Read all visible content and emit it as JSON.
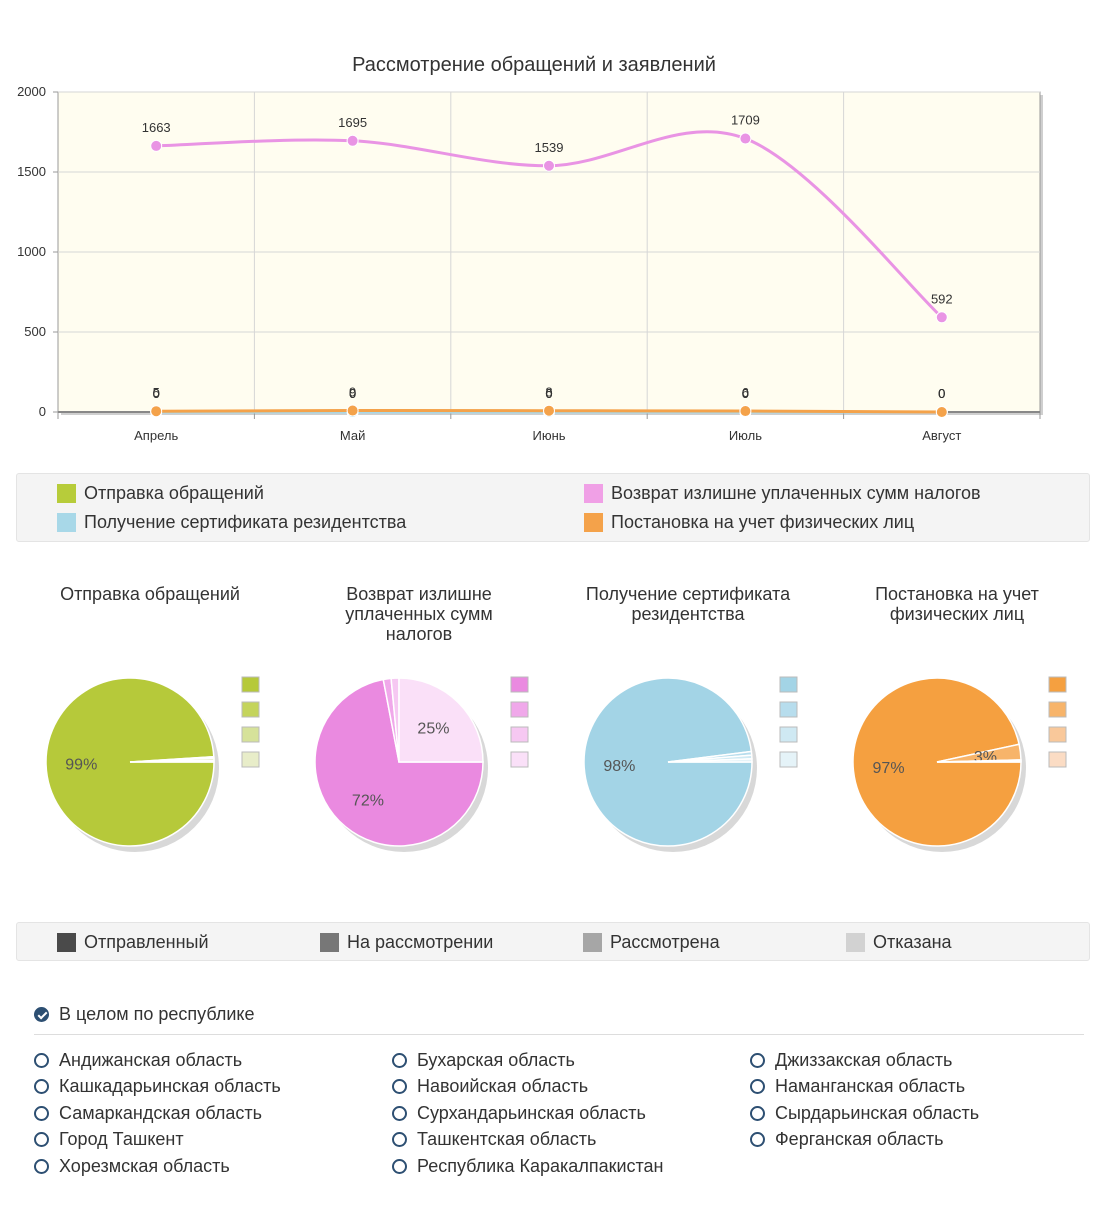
{
  "chart_data": [
    {
      "type": "line",
      "title": "Рассмотрение обращений и заявлений",
      "categories": [
        "Апрель",
        "Май",
        "Июнь",
        "Июль",
        "Август"
      ],
      "ylim": [
        0,
        2000
      ],
      "yticks": [
        0,
        500,
        1000,
        1500,
        2000
      ],
      "grid": true,
      "series": [
        {
          "name": "Возврат излишне уплаченных сумм налогов",
          "color": "#e994e4",
          "values": [
            1663,
            1695,
            1539,
            1709,
            592
          ],
          "labels": [
            "1663",
            "1695",
            "1539",
            "1709",
            "592"
          ]
        },
        {
          "name": "Отправка обращений",
          "color": "#b7cc3a",
          "values": [
            0,
            0,
            0,
            0,
            0
          ],
          "labels": [
            "0",
            "0",
            "0",
            "0",
            "0"
          ]
        },
        {
          "name": "Получение сертификата резидентства",
          "color": "#a8d8e8",
          "values": [
            0,
            0,
            0,
            0,
            0
          ],
          "labels": [
            "0",
            "0",
            "0",
            "0",
            "0"
          ]
        },
        {
          "name": "Постановка на учет физических лиц",
          "color": "#f4a24a",
          "values": [
            5,
            9,
            8,
            6,
            0
          ],
          "labels": [
            "5",
            "9",
            "8",
            "6",
            "0"
          ]
        }
      ]
    },
    {
      "type": "pie",
      "title": "Отправка обращений",
      "colors": [
        "#b6c93a",
        "#c4d45c",
        "#d6e29a",
        "#e8edc9"
      ],
      "values": [
        99,
        0.3,
        0.4,
        0.3
      ],
      "labels": [
        "99%",
        "",
        "",
        ""
      ]
    },
    {
      "type": "pie",
      "title": "Возврат излишне уплаченных сумм налогов",
      "colors": [
        "#ea8ae0",
        "#f0a8ea",
        "#f6c8f2",
        "#fae0f8"
      ],
      "values": [
        72,
        1.5,
        1.5,
        25
      ],
      "labels": [
        "72%",
        "",
        "",
        "25%"
      ]
    },
    {
      "type": "pie",
      "title": "Получение сертификата резидентства",
      "colors": [
        "#a3d4e6",
        "#b7dded",
        "#cfe9f3",
        "#e5f3f8"
      ],
      "values": [
        98,
        0.7,
        0.7,
        0.6
      ],
      "labels": [
        "98%",
        "",
        "",
        ""
      ]
    },
    {
      "type": "pie",
      "title": "Постановка на учет физических лиц",
      "colors": [
        "#f5a040",
        "#f7b46a",
        "#f9c89a",
        "#fbdcc4"
      ],
      "values": [
        97,
        3,
        0.2,
        0.2
      ],
      "labels": [
        "97%",
        "3%",
        "",
        ""
      ]
    }
  ],
  "legend": {
    "items": [
      {
        "label": "Отправка обращений",
        "color": "#b7cc3a"
      },
      {
        "label": "Возврат излишне уплаченных сумм налогов",
        "color": "#f0a0e6"
      },
      {
        "label": "Получение сертификата резидентства",
        "color": "#a8d8e8"
      },
      {
        "label": "Постановка на учет физических лиц",
        "color": "#f4a24a"
      }
    ]
  },
  "pie_titles": {
    "p1": [
      "Отправка обращений"
    ],
    "p2": [
      "Возврат излишне",
      "уплаченных сумм",
      "налогов"
    ],
    "p3": [
      "Получение сертификата",
      "резидентства"
    ],
    "p4": [
      "Постановка на учет",
      "физических лиц"
    ]
  },
  "status_legend": {
    "items": [
      {
        "label": "Отправленный",
        "color": "#4a4a4a"
      },
      {
        "label": "На рассмотрении",
        "color": "#777777"
      },
      {
        "label": "Рассмотрена",
        "color": "#a6a6a6"
      },
      {
        "label": "Отказана",
        "color": "#d2d2d2"
      }
    ]
  },
  "regions": {
    "all_label": "В целом по республике",
    "columns": [
      [
        "Андижанская область",
        "Кашкадарьинская область",
        "Самаркандская область",
        "Город Ташкент",
        "Хорезмская область"
      ],
      [
        "Бухарская область",
        "Навоийская область",
        "Сурхандарьинская область",
        "Ташкентская область",
        "Республика Каракалпакистан"
      ],
      [
        "Джиззакская область",
        "Наманганская область",
        "Сырдарьинская область",
        "Ферганская область"
      ]
    ]
  }
}
